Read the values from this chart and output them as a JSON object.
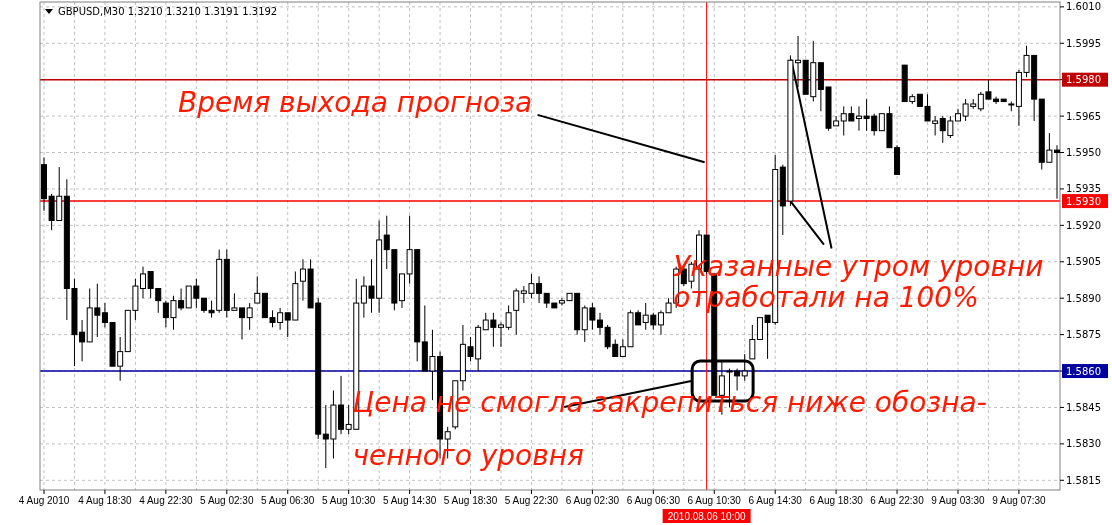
{
  "chart_data": {
    "type": "candlestick",
    "title": "GBPUSD,M30  1.3210 1.3210 1.3191 1.3192",
    "categories": [
      "4 Aug 2010",
      null,
      null,
      null,
      null,
      null,
      null,
      null,
      "4 Aug 18:30",
      null,
      null,
      null,
      null,
      null,
      null,
      null,
      "4 Aug 22:30",
      null,
      null,
      null,
      null,
      null,
      null,
      null,
      "5 Aug 02:30",
      null,
      null,
      null,
      null,
      null,
      null,
      null,
      "5 Aug 06:30",
      null,
      null,
      null,
      null,
      null,
      null,
      null,
      "5 Aug 10:30",
      null,
      null,
      null,
      null,
      null,
      null,
      null,
      "5 Aug 14:30",
      null,
      null,
      null,
      null,
      null,
      null,
      null,
      "5 Aug 18:30",
      null,
      null,
      null,
      null,
      null,
      null,
      null,
      "5 Aug 22:30",
      null,
      null,
      null,
      null,
      null,
      null,
      null,
      "6 Aug 02:30",
      null,
      null,
      null,
      null,
      null,
      null,
      null,
      "6 Aug 06:30",
      null,
      null,
      null,
      null,
      null,
      null,
      "2010.08.06 10:00",
      "6 Aug 10:30",
      null,
      null,
      null,
      null,
      null,
      null,
      null,
      "6 Aug 14:30",
      null,
      null,
      null,
      null,
      null,
      null,
      null,
      "6 Aug 18:30",
      null,
      null,
      null,
      null,
      null,
      null,
      null,
      "6 Aug 22:30",
      null,
      null,
      null,
      null,
      null,
      null,
      null,
      "9 Aug 03:30",
      null,
      null,
      null,
      null,
      null,
      null,
      null,
      "9 Aug 07:30",
      null,
      null,
      null,
      null,
      null
    ],
    "ohlc": [
      [
        1.5945,
        1.5948,
        1.5926,
        1.5931
      ],
      [
        1.5932,
        1.5933,
        1.5918,
        1.5922
      ],
      [
        1.5922,
        1.5944,
        1.5922,
        1.5932
      ],
      [
        1.5932,
        1.5939,
        1.5881,
        1.5894
      ],
      [
        1.5894,
        1.5898,
        1.5862,
        1.5875
      ],
      [
        1.5876,
        1.5881,
        1.5864,
        1.5872
      ],
      [
        1.5872,
        1.5894,
        1.5872,
        1.5886
      ],
      [
        1.5886,
        1.5896,
        1.5874,
        1.5883
      ],
      [
        1.5884,
        1.5888,
        1.5878,
        1.588
      ],
      [
        1.588,
        1.588,
        1.5862,
        1.5862
      ],
      [
        1.5862,
        1.5874,
        1.5856,
        1.5868
      ],
      [
        1.5868,
        1.5885,
        1.5868,
        1.5885
      ],
      [
        1.5885,
        1.5898,
        1.5881,
        1.5895
      ],
      [
        1.5894,
        1.5903,
        1.589,
        1.59
      ],
      [
        1.5901,
        1.5901,
        1.589,
        1.5894
      ],
      [
        1.5894,
        1.5894,
        1.5884,
        1.5889
      ],
      [
        1.5888,
        1.5889,
        1.5878,
        1.5882
      ],
      [
        1.5882,
        1.5891,
        1.5877,
        1.5889
      ],
      [
        1.5889,
        1.5894,
        1.5885,
        1.5886
      ],
      [
        1.5886,
        1.5895,
        1.5886,
        1.5895
      ],
      [
        1.5895,
        1.5898,
        1.5886,
        1.589
      ],
      [
        1.589,
        1.589,
        1.5884,
        1.5885
      ],
      [
        1.5885,
        1.5889,
        1.5882,
        1.5884
      ],
      [
        1.5885,
        1.591,
        1.5884,
        1.5906
      ],
      [
        1.5906,
        1.591,
        1.5882,
        1.5885
      ],
      [
        1.5885,
        1.5892,
        1.5885,
        1.5886
      ],
      [
        1.5886,
        1.5886,
        1.5873,
        1.5882
      ],
      [
        1.5882,
        1.5888,
        1.5877,
        1.5886
      ],
      [
        1.5888,
        1.5899,
        1.5888,
        1.5892
      ],
      [
        1.5892,
        1.5892,
        1.5882,
        1.5882
      ],
      [
        1.5882,
        1.5885,
        1.5878,
        1.588
      ],
      [
        1.588,
        1.5886,
        1.5877,
        1.5884
      ],
      [
        1.5884,
        1.5884,
        1.5874,
        1.5881
      ],
      [
        1.5881,
        1.5901,
        1.5881,
        1.5896
      ],
      [
        1.5897,
        1.5906,
        1.5889,
        1.5902
      ],
      [
        1.5902,
        1.5906,
        1.5886,
        1.5886
      ],
      [
        1.5888,
        1.589,
        1.5832,
        1.5834
      ],
      [
        1.5834,
        1.5846,
        1.582,
        1.5832
      ],
      [
        1.5832,
        1.5852,
        1.5824,
        1.5846
      ],
      [
        1.5846,
        1.5858,
        1.5834,
        1.5836
      ],
      [
        1.5836,
        1.5846,
        1.5834,
        1.5838
      ],
      [
        1.5836,
        1.5898,
        1.5836,
        1.5888
      ],
      [
        1.5888,
        1.5899,
        1.5882,
        1.5895
      ],
      [
        1.5895,
        1.5906,
        1.5884,
        1.589
      ],
      [
        1.589,
        1.5922,
        1.5884,
        1.5914
      ],
      [
        1.5916,
        1.5924,
        1.5902,
        1.591
      ],
      [
        1.591,
        1.591,
        1.5885,
        1.5888
      ],
      [
        1.5889,
        1.59,
        1.5886,
        1.59
      ],
      [
        1.59,
        1.5924,
        1.5896,
        1.591
      ],
      [
        1.591,
        1.591,
        1.5864,
        1.5872
      ],
      [
        1.5872,
        1.5887,
        1.586,
        1.586
      ],
      [
        1.586,
        1.5877,
        1.5848,
        1.5866
      ],
      [
        1.5866,
        1.5868,
        1.5824,
        1.5832
      ],
      [
        1.5832,
        1.5837,
        1.5824,
        1.5835
      ],
      [
        1.5837,
        1.5856,
        1.5836,
        1.5856
      ],
      [
        1.5856,
        1.5879,
        1.5852,
        1.5871
      ],
      [
        1.587,
        1.5874,
        1.5864,
        1.5866
      ],
      [
        1.5865,
        1.5879,
        1.586,
        1.5878
      ],
      [
        1.5877,
        1.5884,
        1.5877,
        1.5881
      ],
      [
        1.5881,
        1.5884,
        1.587,
        1.5878
      ],
      [
        1.5878,
        1.588,
        1.587,
        1.5879
      ],
      [
        1.5878,
        1.5887,
        1.5877,
        1.5884
      ],
      [
        1.5885,
        1.5894,
        1.5875,
        1.5893
      ],
      [
        1.5892,
        1.5895,
        1.5888,
        1.5893
      ],
      [
        1.5892,
        1.59,
        1.589,
        1.5896
      ],
      [
        1.5896,
        1.5899,
        1.5888,
        1.5892
      ],
      [
        1.5892,
        1.5892,
        1.5886,
        1.5888
      ],
      [
        1.5888,
        1.5888,
        1.5886,
        1.5886
      ],
      [
        1.5888,
        1.589,
        1.5887,
        1.5889
      ],
      [
        1.5889,
        1.5892,
        1.5889,
        1.5892
      ],
      [
        1.5892,
        1.5892,
        1.5875,
        1.5877
      ],
      [
        1.5877,
        1.5887,
        1.5872,
        1.5886
      ],
      [
        1.5886,
        1.5888,
        1.5877,
        1.5881
      ],
      [
        1.5881,
        1.5884,
        1.5875,
        1.5878
      ],
      [
        1.5878,
        1.5879,
        1.5869,
        1.587
      ],
      [
        1.5871,
        1.5873,
        1.5866,
        1.5866
      ],
      [
        1.5866,
        1.5873,
        1.5866,
        1.587
      ],
      [
        1.587,
        1.5885,
        1.587,
        1.5884
      ],
      [
        1.5884,
        1.5885,
        1.5879,
        1.5879
      ],
      [
        1.588,
        1.5888,
        1.5877,
        1.5883
      ],
      [
        1.5883,
        1.5884,
        1.5877,
        1.5879
      ],
      [
        1.5879,
        1.5885,
        1.5875,
        1.5884
      ],
      [
        1.5884,
        1.589,
        1.5884,
        1.5888
      ],
      [
        1.5888,
        1.5903,
        1.5886,
        1.5902
      ],
      [
        1.5902,
        1.5903,
        1.5895,
        1.5896
      ],
      [
        1.5897,
        1.5905,
        1.5894,
        1.5904
      ],
      [
        1.5902,
        1.5918,
        1.5887,
        1.5916
      ],
      [
        1.5916,
        1.5916,
        1.59,
        1.5901
      ],
      [
        1.59,
        1.59,
        1.585,
        1.585
      ],
      [
        1.585,
        1.5864,
        1.5842,
        1.5858
      ],
      [
        1.586,
        1.5861,
        1.5845,
        1.586
      ],
      [
        1.586,
        1.5861,
        1.5852,
        1.5858
      ],
      [
        1.5858,
        1.5867,
        1.5856,
        1.586
      ],
      [
        1.5865,
        1.5879,
        1.5865,
        1.5873
      ],
      [
        1.5873,
        1.5882,
        1.5873,
        1.5882
      ],
      [
        1.5883,
        1.5883,
        1.5865,
        1.588
      ],
      [
        1.588,
        1.5949,
        1.5879,
        1.5943
      ],
      [
        1.5944,
        1.5945,
        1.5916,
        1.5928
      ],
      [
        1.593,
        1.599,
        1.5928,
        1.5988
      ],
      [
        1.5987,
        1.5998,
        1.5977,
        1.5988
      ],
      [
        1.5988,
        1.5988,
        1.5974,
        1.5974
      ],
      [
        1.5973,
        1.5996,
        1.5971,
        1.5987
      ],
      [
        1.5987,
        1.5987,
        1.5967,
        1.5976
      ],
      [
        1.5977,
        1.5977,
        1.5959,
        1.596
      ],
      [
        1.5961,
        1.5965,
        1.5961,
        1.5963
      ],
      [
        1.5963,
        1.5969,
        1.5957,
        1.5966
      ],
      [
        1.5966,
        1.5969,
        1.5963,
        1.5963
      ],
      [
        1.5964,
        1.5969,
        1.5959,
        1.5965
      ],
      [
        1.5965,
        1.5972,
        1.5959,
        1.5964
      ],
      [
        1.5965,
        1.5966,
        1.5957,
        1.5959
      ],
      [
        1.5959,
        1.5966,
        1.5959,
        1.5966
      ],
      [
        1.5966,
        1.5969,
        1.5952,
        1.5952
      ],
      [
        1.5952,
        1.5953,
        1.5941,
        1.5941
      ],
      [
        1.5986,
        1.5986,
        1.5971,
        1.5971
      ],
      [
        1.5971,
        1.5974,
        1.597,
        1.5973
      ],
      [
        1.5974,
        1.5974,
        1.5969,
        1.5969
      ],
      [
        1.5969,
        1.5974,
        1.5963,
        1.5963
      ],
      [
        1.5962,
        1.5965,
        1.5957,
        1.5963
      ],
      [
        1.5964,
        1.5965,
        1.5954,
        1.5959
      ],
      [
        1.5957,
        1.5965,
        1.5956,
        1.5963
      ],
      [
        1.5963,
        1.5968,
        1.5963,
        1.5966
      ],
      [
        1.5965,
        1.5972,
        1.5963,
        1.597
      ],
      [
        1.5969,
        1.5972,
        1.5968,
        1.597
      ],
      [
        1.5968,
        1.5975,
        1.5967,
        1.5974
      ],
      [
        1.5975,
        1.598,
        1.5972,
        1.5972
      ],
      [
        1.5972,
        1.5973,
        1.597,
        1.5971
      ],
      [
        1.5972,
        1.5972,
        1.5971,
        1.5971
      ],
      [
        1.597,
        1.5971,
        1.5967,
        1.597
      ],
      [
        1.5969,
        1.5984,
        1.5961,
        1.5983
      ],
      [
        1.5983,
        1.5994,
        1.5981,
        1.599
      ],
      [
        1.599,
        1.599,
        1.5963,
        1.5972
      ],
      [
        1.5972,
        1.5972,
        1.5943,
        1.5946
      ],
      [
        1.5946,
        1.5958,
        1.5946,
        1.5951
      ],
      [
        1.5951,
        1.5953,
        1.5931,
        1.595
      ]
    ],
    "ylim": [
      1.5811,
      1.6012
    ],
    "yticks": [
      {
        "value": 1.601,
        "label": "1.6010"
      },
      1.5995,
      {
        "value": 1.598,
        "label": null
      },
      1.5965,
      {
        "value": 1.595,
        "label": "1.5950"
      },
      1.5935,
      {
        "value": 1.592,
        "label": "1.5920"
      },
      1.5905,
      {
        "value": 1.589,
        "label": "1.5890"
      },
      1.5875,
      {
        "value": 1.586,
        "label": null
      },
      1.5845,
      {
        "value": 1.583,
        "label": "1.5830"
      },
      1.5815
    ],
    "grid": true,
    "ref_lines": [
      {
        "axis": "y",
        "value": 1.598,
        "label": "1.5980",
        "color": "#c00000"
      },
      {
        "axis": "y",
        "value": 1.593,
        "label": "1.5930",
        "color": "#ff0000"
      },
      {
        "axis": "y",
        "value": 1.586,
        "label": "1.5860",
        "color": "#0000a0"
      },
      {
        "axis": "x",
        "value": "2010.08.06 10:00",
        "color": "#ff0000"
      }
    ],
    "annotations": [
      {
        "text": "Время выхода прогноза",
        "x": "2010.08.06 10:00",
        "y": 1.5946
      },
      {
        "text": "Указанные утром уровни\nотработали на 100%",
        "y": 1.593
      },
      {
        "text": "Цена не смогла закрепиться ниже обозна-\nченного уровня",
        "y": 1.586
      }
    ]
  }
}
